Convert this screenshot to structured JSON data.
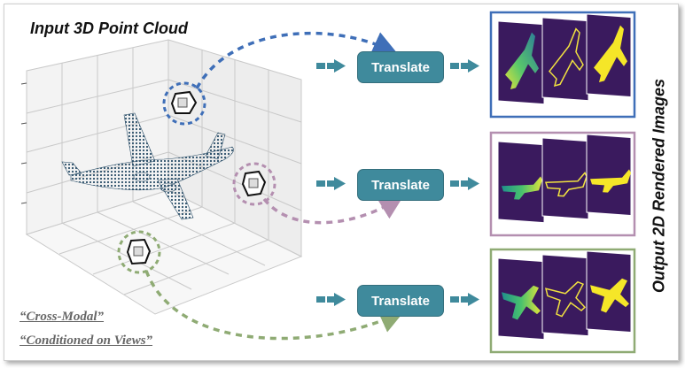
{
  "title": "Input 3D Point Cloud",
  "output_title": "Output 2D Rendered Images",
  "translate_label": "Translate",
  "captions": [
    "“Cross-Modal”",
    "“Conditioned on Views”"
  ],
  "colors": {
    "view1": "#3f6fb8",
    "view2": "#b48fb0",
    "view3": "#8fab74",
    "button": "#3f8a9c",
    "panel": "#3a1a5e",
    "point_cloud": "#2a4e68"
  }
}
